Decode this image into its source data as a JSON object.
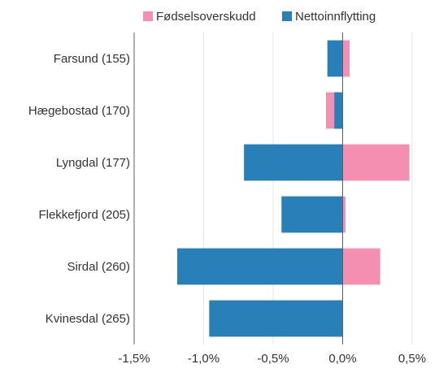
{
  "chart_data": {
    "type": "bar",
    "orientation": "horizontal",
    "stacked": true,
    "categories": [
      "Farsund (155)",
      "Hægebostad (170)",
      "Lyngdal (177)",
      "Flekkefjord (205)",
      "Sirdal (260)",
      "Kvinesdal (265)"
    ],
    "series": [
      {
        "name": "Fødselsoverskudd",
        "color": "#f48fb1",
        "values": [
          0.05,
          -0.12,
          0.48,
          0.02,
          0.27,
          -0.07
        ]
      },
      {
        "name": "Nettoinnflytting",
        "color": "#2980b9",
        "values": [
          -0.11,
          -0.06,
          -0.71,
          -0.44,
          -1.19,
          -0.96
        ]
      }
    ],
    "xlim": [
      -1.5,
      0.5
    ],
    "x_ticks": [
      "-1,5%",
      "-1,0%",
      "-0,5%",
      "0,0%",
      "0,5%"
    ],
    "x_tick_values": [
      -1.5,
      -1.0,
      -0.5,
      0.0,
      0.5
    ],
    "legend_position": "top",
    "grid": "vertical"
  }
}
